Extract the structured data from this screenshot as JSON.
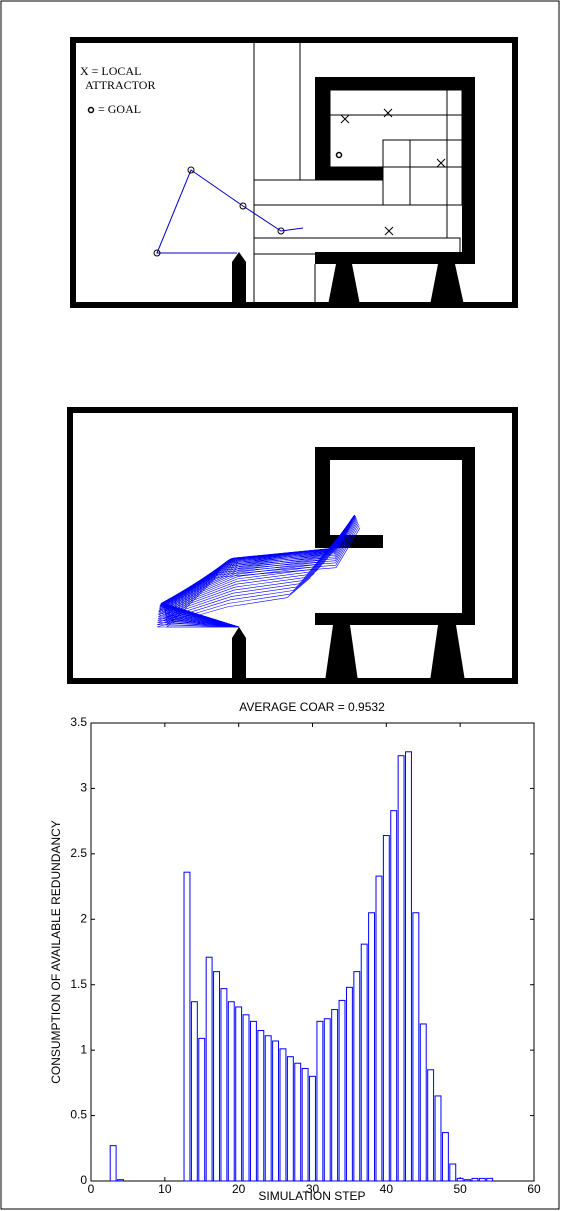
{
  "diagram": {
    "legend": [
      "X = LOCAL",
      "ATTRACTOR",
      "= GOAL"
    ]
  },
  "chart_data": {
    "type": "bar",
    "title": "AVERAGE COAR = 0.9532",
    "x_label": "SIMULATION STEP",
    "y_label": "CONSUMPTION OF AVAILABLE REDUNDANCY",
    "x": [
      3,
      4,
      13,
      14,
      15,
      16,
      17,
      18,
      19,
      20,
      21,
      22,
      23,
      24,
      25,
      26,
      27,
      28,
      29,
      30,
      31,
      32,
      33,
      34,
      35,
      36,
      37,
      38,
      39,
      40,
      41,
      42,
      43,
      44,
      45,
      46,
      47,
      48,
      49,
      50,
      51,
      52,
      53,
      54
    ],
    "values": [
      0.27,
      0.01,
      2.36,
      1.37,
      1.09,
      1.71,
      1.6,
      1.47,
      1.37,
      1.33,
      1.27,
      1.22,
      1.15,
      1.11,
      1.07,
      1.01,
      0.95,
      0.9,
      0.86,
      0.8,
      1.22,
      1.24,
      1.31,
      1.38,
      1.48,
      1.6,
      1.81,
      2.05,
      2.33,
      2.64,
      2.83,
      3.25,
      3.28,
      2.05,
      1.2,
      0.85,
      0.65,
      0.37,
      0.13,
      0.02,
      0.01,
      0.02,
      0.02,
      0.02
    ],
    "color": "#0000ff",
    "xlim": [
      0,
      60
    ],
    "xticks": [
      0,
      10,
      20,
      30,
      40,
      50,
      60
    ],
    "ylim": [
      0,
      3.5
    ],
    "yticks": [
      0,
      0.5,
      1,
      1.5,
      2,
      2.5,
      3,
      3.5
    ],
    "grid": false
  }
}
